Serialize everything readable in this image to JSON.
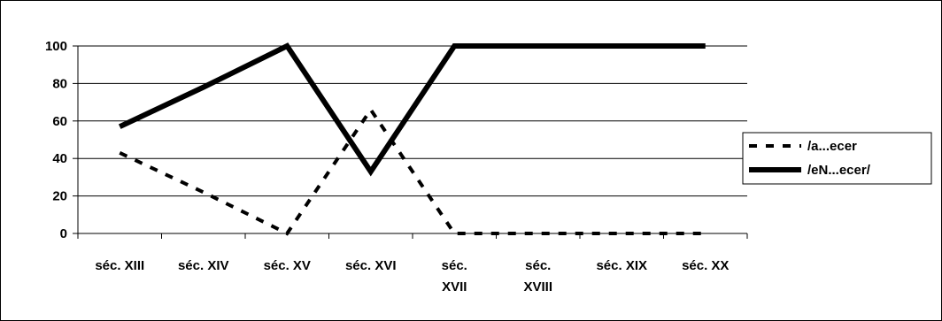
{
  "chart_data": {
    "type": "line",
    "categories": [
      [
        "séc. XIII"
      ],
      [
        "séc. XIV"
      ],
      [
        "séc. XV"
      ],
      [
        "séc. XVI"
      ],
      [
        "séc.",
        "XVII"
      ],
      [
        "séc.",
        "XVIII"
      ],
      [
        "séc. XIX"
      ],
      [
        "séc. XX"
      ]
    ],
    "y_ticks": [
      "0",
      "20",
      "40",
      "60",
      "80",
      "100"
    ],
    "ylim": [
      0,
      100
    ],
    "grid": true,
    "legend_position": "right",
    "series": [
      {
        "name": "/a...ecer",
        "style": "dashed",
        "color": "#000000",
        "values": [
          43,
          22,
          0,
          66,
          0,
          0,
          0,
          0
        ]
      },
      {
        "name": "/eN...ecer/",
        "style": "solid",
        "color": "#000000",
        "values": [
          57,
          78,
          100,
          33,
          100,
          100,
          100,
          100
        ]
      }
    ]
  }
}
